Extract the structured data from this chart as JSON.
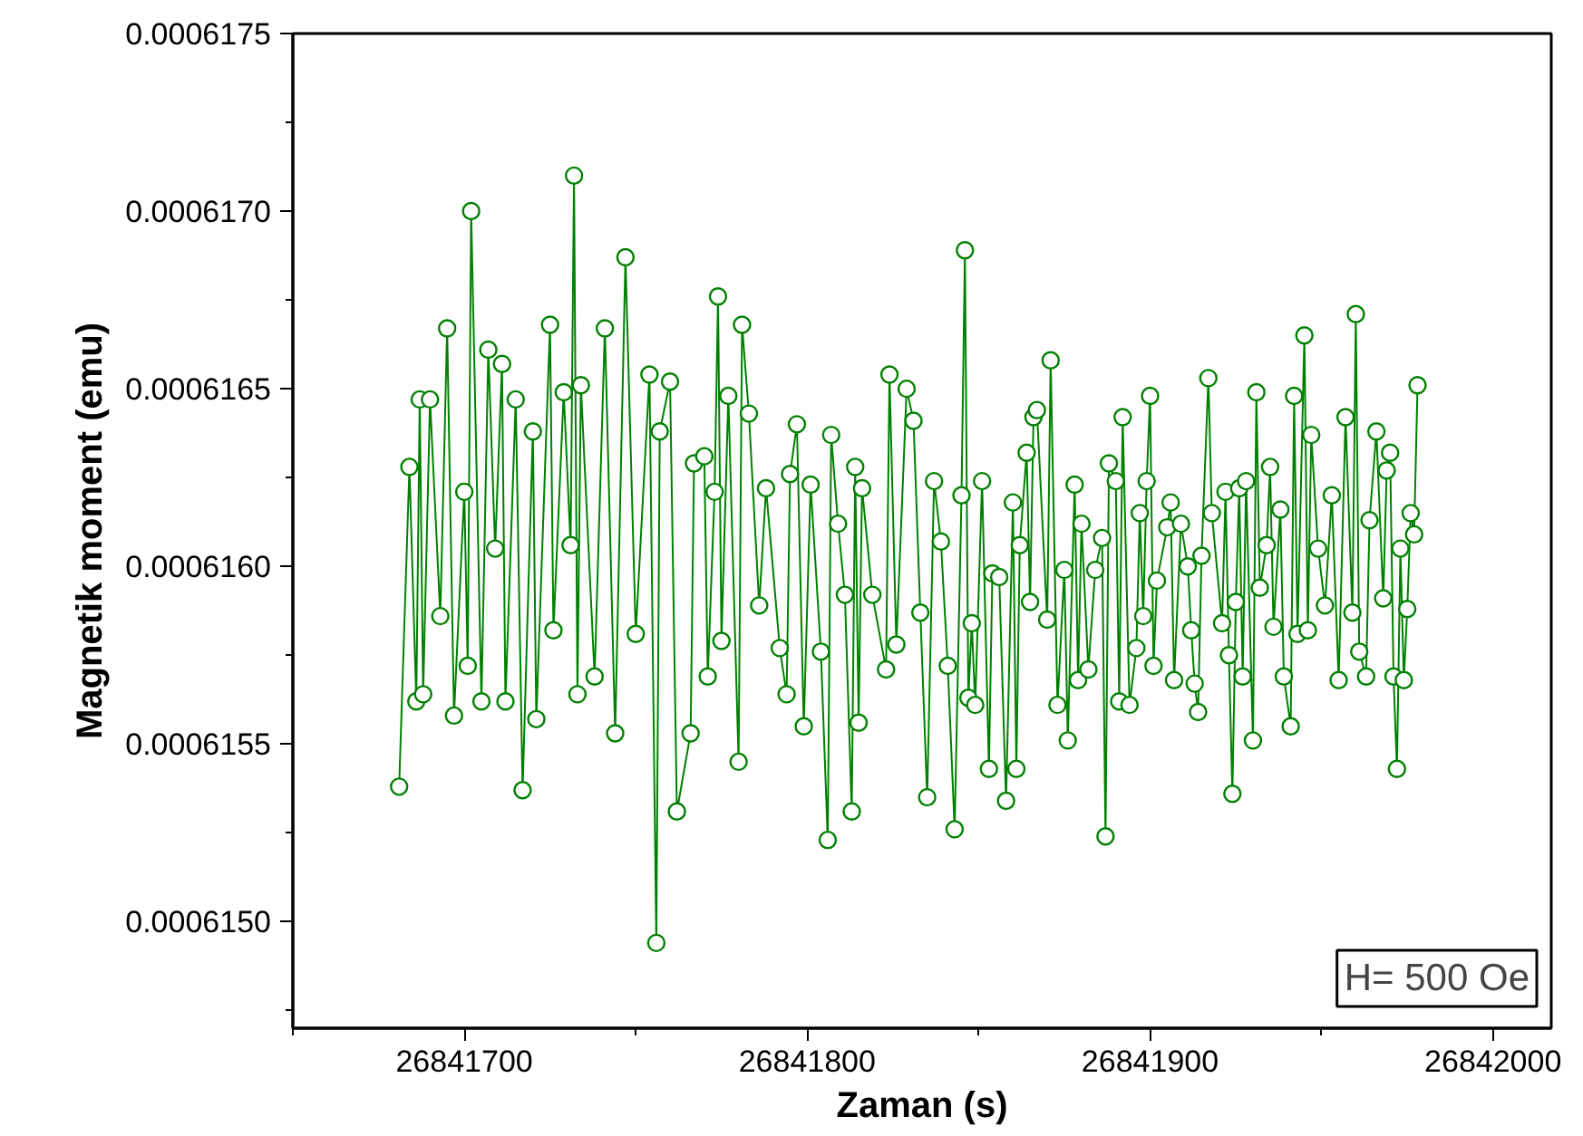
{
  "chart_data": {
    "type": "line",
    "marker": "circle",
    "grid": false,
    "xlabel": "Zaman (s)",
    "ylabel": "Magnetik moment (emu)",
    "annotations": [
      "H= 500 Oe"
    ],
    "xlim": [
      26841650,
      26842017
    ],
    "xticks": [
      26841700,
      26841800,
      26841900,
      26842000
    ],
    "ylim": [
      0.0006147,
      0.0006175
    ],
    "yticks": [
      {
        "value": 0.000615,
        "label": "0.0006150"
      },
      {
        "value": 0.0006155,
        "label": "0.0006155"
      },
      {
        "value": 0.000616,
        "label": "0.0006160"
      },
      {
        "value": 0.0006165,
        "label": "0.0006165"
      },
      {
        "value": 0.000617,
        "label": "0.0006170"
      },
      {
        "value": 0.0006175,
        "label": "0.0006175"
      }
    ],
    "series": [
      {
        "color": "#008000",
        "x": [
          26841681,
          26841684,
          26841686,
          26841687,
          26841688,
          26841690,
          26841693,
          26841695,
          26841697,
          26841700,
          26841701,
          26841702,
          26841705,
          26841707,
          26841709,
          26841711,
          26841712,
          26841715,
          26841717,
          26841720,
          26841721,
          26841725,
          26841726,
          26841729,
          26841731,
          26841732,
          26841733,
          26841734,
          26841738,
          26841741,
          26841744,
          26841747,
          26841750,
          26841754,
          26841756,
          26841757,
          26841760,
          26841762,
          26841766,
          26841767,
          26841770,
          26841771,
          26841773,
          26841774,
          26841775,
          26841777,
          26841780,
          26841781,
          26841783,
          26841786,
          26841788,
          26841792,
          26841794,
          26841795,
          26841797,
          26841799,
          26841801,
          26841804,
          26841806,
          26841807,
          26841809,
          26841811,
          26841813,
          26841814,
          26841815,
          26841816,
          26841819,
          26841823,
          26841824,
          26841826,
          26841829,
          26841831,
          26841833,
          26841835,
          26841837,
          26841839,
          26841841,
          26841843,
          26841845,
          26841846,
          26841847,
          26841848,
          26841849,
          26841851,
          26841853,
          26841854,
          26841856,
          26841858,
          26841860,
          26841861,
          26841862,
          26841864,
          26841865,
          26841866,
          26841867,
          26841870,
          26841871,
          26841873,
          26841875,
          26841876,
          26841878,
          26841879,
          26841880,
          26841882,
          26841884,
          26841886,
          26841887,
          26841888,
          26841890,
          26841891,
          26841892,
          26841894,
          26841896,
          26841897,
          26841898,
          26841899,
          26841900,
          26841901,
          26841902,
          26841905,
          26841906,
          26841907,
          26841909,
          26841911,
          26841912,
          26841913,
          26841914,
          26841915,
          26841917,
          26841918,
          26841921,
          26841922,
          26841923,
          26841924,
          26841925,
          26841926,
          26841927,
          26841928,
          26841930,
          26841931,
          26841932,
          26841934,
          26841935,
          26841936,
          26841938,
          26841939,
          26841941,
          26841942,
          26841943,
          26841945,
          26841946,
          26841947,
          26841949,
          26841951,
          26841953,
          26841955,
          26841957,
          26841959,
          26841960,
          26841961,
          26841963,
          26841964,
          26841966,
          26841968,
          26841969,
          26841970,
          26841971,
          26841972,
          26841973,
          26841974,
          26841975,
          26841976,
          26841977,
          26841978
        ],
        "values": [
          0.00061538,
          0.00061628,
          0.00061562,
          0.00061647,
          0.00061564,
          0.00061647,
          0.00061586,
          0.00061667,
          0.00061558,
          0.00061621,
          0.00061572,
          0.000617,
          0.00061562,
          0.00061661,
          0.00061605,
          0.00061657,
          0.00061562,
          0.00061647,
          0.00061537,
          0.00061638,
          0.00061557,
          0.00061668,
          0.00061582,
          0.00061649,
          0.00061606,
          0.0006171,
          0.00061564,
          0.00061651,
          0.00061569,
          0.00061667,
          0.00061553,
          0.00061687,
          0.00061581,
          0.00061654,
          0.00061494,
          0.00061638,
          0.00061652,
          0.00061531,
          0.00061553,
          0.00061629,
          0.00061631,
          0.00061569,
          0.00061621,
          0.00061676,
          0.00061579,
          0.00061648,
          0.00061545,
          0.00061668,
          0.00061643,
          0.00061589,
          0.00061622,
          0.00061577,
          0.00061564,
          0.00061626,
          0.0006164,
          0.00061555,
          0.00061623,
          0.00061576,
          0.00061523,
          0.00061637,
          0.00061612,
          0.00061592,
          0.00061531,
          0.00061628,
          0.00061556,
          0.00061622,
          0.00061592,
          0.00061571,
          0.00061654,
          0.00061578,
          0.0006165,
          0.00061641,
          0.00061587,
          0.00061535,
          0.00061624,
          0.00061607,
          0.00061572,
          0.00061526,
          0.0006162,
          0.00061689,
          0.00061563,
          0.00061584,
          0.00061561,
          0.00061624,
          0.00061543,
          0.00061598,
          0.00061597,
          0.00061534,
          0.00061618,
          0.00061543,
          0.00061606,
          0.00061632,
          0.0006159,
          0.00061642,
          0.00061644,
          0.00061585,
          0.00061658,
          0.00061561,
          0.00061599,
          0.00061551,
          0.00061623,
          0.00061568,
          0.00061612,
          0.00061571,
          0.00061599,
          0.00061608,
          0.00061524,
          0.00061629,
          0.00061624,
          0.00061562,
          0.00061642,
          0.00061561,
          0.00061577,
          0.00061615,
          0.00061586,
          0.00061624,
          0.00061648,
          0.00061572,
          0.00061596,
          0.00061611,
          0.00061618,
          0.00061568,
          0.00061612,
          0.000616,
          0.00061582,
          0.00061567,
          0.00061559,
          0.00061603,
          0.00061653,
          0.00061615,
          0.00061584,
          0.00061621,
          0.00061575,
          0.00061536,
          0.0006159,
          0.00061622,
          0.00061569,
          0.00061624,
          0.00061551,
          0.00061649,
          0.00061594,
          0.00061606,
          0.00061628,
          0.00061583,
          0.00061616,
          0.00061569,
          0.00061555,
          0.00061648,
          0.00061581,
          0.00061665,
          0.00061582,
          0.00061637,
          0.00061605,
          0.00061589,
          0.0006162,
          0.00061568,
          0.00061642,
          0.00061587,
          0.00061671,
          0.00061576,
          0.00061569,
          0.00061613,
          0.00061638,
          0.00061591,
          0.00061627,
          0.00061632,
          0.00061569,
          0.00061543,
          0.00061605,
          0.00061568,
          0.00061588,
          0.00061615,
          0.00061609,
          0.00061651
        ]
      }
    ]
  }
}
